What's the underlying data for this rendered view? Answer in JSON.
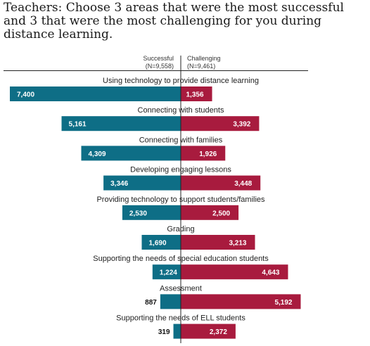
{
  "chart_data": {
    "type": "bar",
    "title": "Teachers: Choose 3 areas that were the most successful and 3 that were the most challenging for you during distance learning.",
    "categories": [
      "Using technology to provide distance learning",
      "Connecting with students",
      "Connecting with families",
      "Developing engaging lessons",
      "Providing technology to support students/families",
      "Grading",
      "Supporting the needs of special education students",
      "Assessment",
      "Supporting the needs of ELL students"
    ],
    "series": [
      {
        "name": "Successful",
        "n_label": "(N=9,558)",
        "values": [
          7400,
          5161,
          4309,
          3346,
          2530,
          1690,
          1224,
          887,
          319
        ],
        "labels": [
          "7,400",
          "5,161",
          "4,309",
          "3,346",
          "2,530",
          "1,690",
          "1,224",
          "887",
          "319"
        ]
      },
      {
        "name": "Challenging",
        "n_label": "(N=9,461)",
        "values": [
          1356,
          3392,
          1926,
          3448,
          2500,
          3213,
          4643,
          5192,
          2372
        ],
        "labels": [
          "1,356",
          "3,392",
          "1,926",
          "3,448",
          "2,500",
          "3,213",
          "4,643",
          "5,192",
          "2,372"
        ]
      }
    ],
    "colors": {
      "successful": "#0e6e86",
      "challenging": "#a81b3e"
    },
    "orientation": "horizontal-diverging"
  }
}
